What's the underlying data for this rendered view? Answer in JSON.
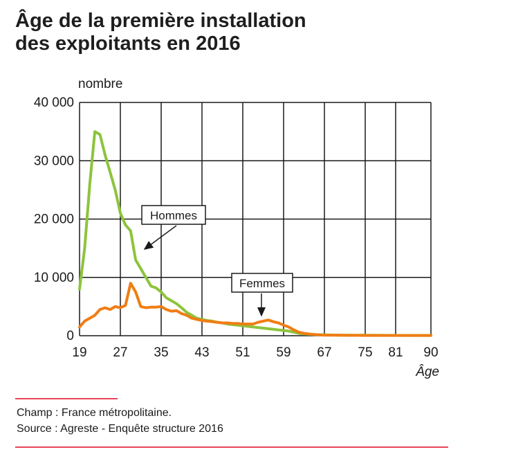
{
  "header": {
    "title_line1": "Âge de la première installation",
    "title_line2": "des exploitants en 2016"
  },
  "footer": {
    "champ": "Champ : France métropolitaine.",
    "source": "Source : Agreste - Enquête structure 2016"
  },
  "colors": {
    "hommes": "#8cc43c",
    "femmes": "#f07d14",
    "grid": "#1a1a1a",
    "rule": "#e8445a"
  },
  "chart_data": {
    "type": "line",
    "title": "Âge de la première installation des exploitants en 2016",
    "ylabel": "nombre",
    "xlabel": "Âge",
    "x_ticks": [
      19,
      27,
      35,
      43,
      51,
      59,
      67,
      75,
      81,
      90
    ],
    "y_ticks": [
      0,
      10000,
      20000,
      30000,
      40000
    ],
    "y_tick_labels": [
      "0",
      "10 000",
      "20 000",
      "30 000",
      "40 000"
    ],
    "ylim": [
      0,
      40000
    ],
    "grid": true,
    "series": [
      {
        "name": "Hommes",
        "color": "#8cc43c",
        "points": [
          [
            19,
            8000
          ],
          [
            20,
            15000
          ],
          [
            21,
            26000
          ],
          [
            22,
            35000
          ],
          [
            23,
            34500
          ],
          [
            24,
            31000
          ],
          [
            25,
            28000
          ],
          [
            26,
            25000
          ],
          [
            27,
            21000
          ],
          [
            28,
            19000
          ],
          [
            29,
            18000
          ],
          [
            30,
            13000
          ],
          [
            31,
            11500
          ],
          [
            32,
            10000
          ],
          [
            33,
            8500
          ],
          [
            34,
            8200
          ],
          [
            35,
            7500
          ],
          [
            36,
            6500
          ],
          [
            37,
            6000
          ],
          [
            38,
            5500
          ],
          [
            39,
            4800
          ],
          [
            40,
            4000
          ],
          [
            41,
            3500
          ],
          [
            42,
            3000
          ],
          [
            43,
            2800
          ],
          [
            44,
            2600
          ],
          [
            45,
            2500
          ],
          [
            46,
            2300
          ],
          [
            47,
            2200
          ],
          [
            48,
            2000
          ],
          [
            49,
            1900
          ],
          [
            50,
            1800
          ],
          [
            51,
            1700
          ],
          [
            52,
            1600
          ],
          [
            53,
            1500
          ],
          [
            54,
            1400
          ],
          [
            55,
            1300
          ],
          [
            56,
            1200
          ],
          [
            57,
            1100
          ],
          [
            58,
            1000
          ],
          [
            59,
            900
          ],
          [
            60,
            800
          ],
          [
            61,
            600
          ],
          [
            62,
            400
          ],
          [
            63,
            300
          ],
          [
            64,
            250
          ],
          [
            65,
            200
          ],
          [
            67,
            150
          ],
          [
            70,
            100
          ],
          [
            75,
            80
          ],
          [
            80,
            60
          ],
          [
            85,
            50
          ],
          [
            90,
            50
          ]
        ]
      },
      {
        "name": "Femmes",
        "color": "#f07d14",
        "points": [
          [
            19,
            1500
          ],
          [
            20,
            2500
          ],
          [
            21,
            3000
          ],
          [
            22,
            3500
          ],
          [
            23,
            4500
          ],
          [
            24,
            4800
          ],
          [
            25,
            4500
          ],
          [
            26,
            5000
          ],
          [
            27,
            4800
          ],
          [
            28,
            5200
          ],
          [
            29,
            9000
          ],
          [
            30,
            7500
          ],
          [
            31,
            5000
          ],
          [
            32,
            4800
          ],
          [
            33,
            4900
          ],
          [
            34,
            4900
          ],
          [
            35,
            5000
          ],
          [
            36,
            4500
          ],
          [
            37,
            4200
          ],
          [
            38,
            4300
          ],
          [
            39,
            3800
          ],
          [
            40,
            3500
          ],
          [
            41,
            3000
          ],
          [
            42,
            2800
          ],
          [
            43,
            2600
          ],
          [
            44,
            2500
          ],
          [
            45,
            2400
          ],
          [
            46,
            2300
          ],
          [
            47,
            2200
          ],
          [
            48,
            2200
          ],
          [
            49,
            2100
          ],
          [
            50,
            2100
          ],
          [
            51,
            2000
          ],
          [
            52,
            2000
          ],
          [
            53,
            2000
          ],
          [
            54,
            2300
          ],
          [
            55,
            2500
          ],
          [
            56,
            2700
          ],
          [
            57,
            2400
          ],
          [
            58,
            2200
          ],
          [
            59,
            1800
          ],
          [
            60,
            1500
          ],
          [
            61,
            1000
          ],
          [
            62,
            600
          ],
          [
            63,
            400
          ],
          [
            64,
            300
          ],
          [
            65,
            200
          ],
          [
            67,
            100
          ],
          [
            70,
            80
          ],
          [
            75,
            50
          ],
          [
            80,
            50
          ],
          [
            85,
            50
          ],
          [
            90,
            50
          ]
        ]
      }
    ],
    "annotations": [
      {
        "text": "Hommes",
        "series": "Hommes"
      },
      {
        "text": "Femmes",
        "series": "Femmes"
      }
    ]
  }
}
